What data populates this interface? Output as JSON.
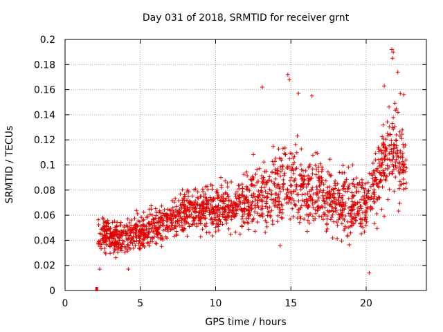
{
  "chart_data": {
    "type": "scatter",
    "title": "Day 031 of 2018, SRMTID for receiver grnt",
    "xlabel": "GPS time / hours",
    "ylabel": "SRMTID / TECUs",
    "xlim": [
      0,
      24
    ],
    "ylim": [
      0,
      0.2
    ],
    "xticks": [
      0,
      5,
      10,
      15,
      20
    ],
    "xtick_labels": [
      "0",
      "5",
      "10",
      "15",
      "20"
    ],
    "yticks": [
      0,
      0.02,
      0.04,
      0.06,
      0.08,
      0.1,
      0.12,
      0.14,
      0.16,
      0.18,
      0.2
    ],
    "ytick_labels": [
      "0",
      "0.02",
      "0.04",
      "0.06",
      "0.08",
      "0.1",
      "0.12",
      "0.14",
      "0.16",
      "0.18",
      "0.2"
    ],
    "grid": true,
    "marker": "+",
    "color": "#e00000",
    "zero_marker": {
      "x": 2.1,
      "y": 0
    },
    "series": [
      {
        "name": "SRMTID",
        "trend": [
          [
            2.2,
            0.045
          ],
          [
            3.5,
            0.042
          ],
          [
            5,
            0.045
          ],
          [
            7,
            0.058
          ],
          [
            9,
            0.066
          ],
          [
            11,
            0.066
          ],
          [
            13,
            0.074
          ],
          [
            14.8,
            0.088
          ],
          [
            16,
            0.082
          ],
          [
            17,
            0.075
          ],
          [
            18.5,
            0.068
          ],
          [
            20,
            0.068
          ],
          [
            21,
            0.1
          ],
          [
            21.8,
            0.115
          ],
          [
            22.7,
            0.1
          ]
        ],
        "spread": [
          [
            2.2,
            0.012
          ],
          [
            5,
            0.013
          ],
          [
            9,
            0.016
          ],
          [
            13,
            0.022
          ],
          [
            14.8,
            0.032
          ],
          [
            17,
            0.026
          ],
          [
            20,
            0.02
          ],
          [
            21.8,
            0.035
          ],
          [
            22.7,
            0.03
          ]
        ],
        "density_per_hour": 90,
        "peaks": [
          [
            21.7,
            0.192
          ],
          [
            21.8,
            0.19
          ],
          [
            21.75,
            0.185
          ],
          [
            14.8,
            0.172
          ],
          [
            14.9,
            0.168
          ],
          [
            13.1,
            0.162
          ],
          [
            15.5,
            0.157
          ],
          [
            22.1,
            0.174
          ],
          [
            21.2,
            0.163
          ],
          [
            16.4,
            0.155
          ],
          [
            22.5,
            0.156
          ],
          [
            19.1,
            0.1
          ],
          [
            20.2,
            0.014
          ],
          [
            2.3,
            0.017
          ],
          [
            4.2,
            0.017
          ]
        ]
      }
    ]
  }
}
